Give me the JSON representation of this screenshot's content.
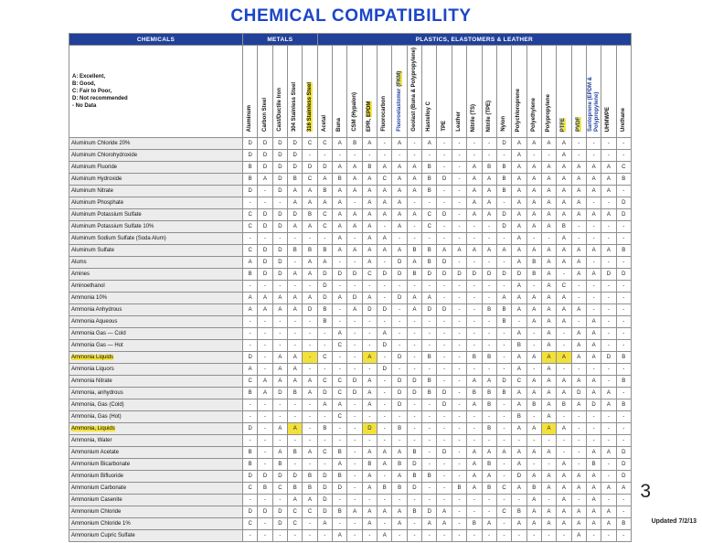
{
  "page": {
    "title": "CHEMICAL COMPATIBILITY",
    "page_number": "3",
    "updated": "Updated 7/2/13"
  },
  "colors": {
    "title_blue": "#1b46c8",
    "header_blue": "#21409a",
    "highlight_yellow": "#f2e13a",
    "label_gray": "#ececec"
  },
  "legend": {
    "lines": [
      "A: Excellent,",
      "B: Good,",
      "C: Fair to Poor,",
      "D: Not recommended",
      "-  No Data"
    ]
  },
  "table": {
    "group_headers": [
      {
        "label": "CHEMICALS",
        "span": 1
      },
      {
        "label": "METALS",
        "span": 5
      },
      {
        "label": "PLASTICS, ELASTOMERS & LEATHER",
        "span": 21
      }
    ],
    "columns": [
      {
        "pre": "Aluminum",
        "hl": ""
      },
      {
        "pre": "Carbon Steel",
        "hl": ""
      },
      {
        "pre": "Cast/Ductile Iron",
        "hl": ""
      },
      {
        "pre": "304 Stainless Steel",
        "hl": ""
      },
      {
        "pre": "",
        "hl": "316 Stainless Steel"
      },
      {
        "pre": "Acetal",
        "hl": ""
      },
      {
        "pre": "Buna",
        "hl": ""
      },
      {
        "pre": "CSM (Hypalon)",
        "hl": ""
      },
      {
        "pre": "EPR, ",
        "hl": "EPDM"
      },
      {
        "pre": "Fluorocarbon",
        "hl": ""
      },
      {
        "pre": "Fluoroelastomer ",
        "hl": "(FKM)",
        "blue": true
      },
      {
        "pre": "Geolast (Buna & Polypropylene)",
        "hl": ""
      },
      {
        "pre": "Hastelloy C",
        "hl": ""
      },
      {
        "pre": "TPE",
        "hl": ""
      },
      {
        "pre": "Leather",
        "hl": ""
      },
      {
        "pre": "Nitrile (TS)",
        "hl": ""
      },
      {
        "pre": "Nitrile (TPE)",
        "hl": ""
      },
      {
        "pre": "Nylon",
        "hl": ""
      },
      {
        "pre": "Polychloroprene",
        "hl": ""
      },
      {
        "pre": "Polyethylene",
        "hl": ""
      },
      {
        "pre": "Polypropylene",
        "hl": ""
      },
      {
        "pre": "",
        "hl": "PTFE",
        "blue": true
      },
      {
        "pre": "",
        "hl": "PVDF",
        "blue": true
      },
      {
        "pre": "Santoprene (EPDM & Polypropylene)",
        "hl": "",
        "blue": true
      },
      {
        "pre": "UHMWPE",
        "hl": ""
      },
      {
        "pre": "Urethane",
        "hl": ""
      }
    ],
    "rows": [
      {
        "name": "Aluminum Chloride 20%",
        "name_hl": false,
        "values": "D D D D C C A B A - A - A - - - - D A A A A - - - -",
        "hl_cells": []
      },
      {
        "name": "Aluminum Chlorohydroxide",
        "name_hl": false,
        "values": "D D D D - - - - - - - - - - - - - - A - - A - - - -",
        "hl_cells": []
      },
      {
        "name": "Aluminum Fluoride",
        "name_hl": false,
        "values": "B D D D D D A A B A A A B - - A B B A A A A A A A C",
        "hl_cells": []
      },
      {
        "name": "Aluminum Hydroxide",
        "name_hl": false,
        "values": "B A D B C A B A A C A A B D - A A B A A A A A A A B",
        "hl_cells": []
      },
      {
        "name": "Aluminum Nitrate",
        "name_hl": false,
        "values": "D - D A A B A A A A A A B - - A A B A A A A A A A -",
        "hl_cells": []
      },
      {
        "name": "Aluminum Phosphate",
        "name_hl": false,
        "values": "- - - A A A A - A A A - - - - A A - A A A A A - - D",
        "hl_cells": []
      },
      {
        "name": "Aluminum Potassium Sulfate",
        "name_hl": false,
        "values": "C D D D B C A A A A A A C D - A A D A A A A A A A D",
        "hl_cells": []
      },
      {
        "name": "Aluminum Potassium Sulfate 10%",
        "name_hl": false,
        "values": "C D D A A C A A A - A - C - - - - D A A A B - - - -",
        "hl_cells": []
      },
      {
        "name": "Aluminum Sodium Sulfate (Soda Alum)",
        "name_hl": false,
        "values": "- - - - - - A - A A - - - - - - - - A - - A - - - -",
        "hl_cells": []
      },
      {
        "name": "Aluminum Sulfate",
        "name_hl": false,
        "values": "C D D B B B A A A A A B B A A A A A A A A A A A A B",
        "hl_cells": []
      },
      {
        "name": "Alums",
        "name_hl": false,
        "values": "A D D - A A - - A - D A B D - - - - A B A A A - - -",
        "hl_cells": []
      },
      {
        "name": "Amines",
        "name_hl": false,
        "values": "B D D A A D D D C D D B D D D D D D D B A - A A D D",
        "hl_cells": []
      },
      {
        "name": "Aminoethanol",
        "name_hl": false,
        "values": "- - - - - D - - - - - - - - - - - - A - A C - - - -",
        "hl_cells": []
      },
      {
        "name": "Ammonia 10%",
        "name_hl": false,
        "values": "A A A A A D A D A - D A A - - - - A A A A A - - - -",
        "hl_cells": []
      },
      {
        "name": "Ammonia Anhydrous",
        "name_hl": false,
        "values": "A A A A D B - A D D - A D D - - B B A A A A A - - -",
        "hl_cells": []
      },
      {
        "name": "Ammonia Aqueous",
        "name_hl": false,
        "values": "- - - - - B - - - - - - - - - - - B - A A A - A - -",
        "hl_cells": []
      },
      {
        "name": "Ammonia Gas — Cold",
        "name_hl": false,
        "values": "- - - - - - A - - A - - - - - - - - A - A - A A - -",
        "hl_cells": []
      },
      {
        "name": "Ammonia Gas — Hot",
        "name_hl": false,
        "values": "- - - - - - C - - D - - - - - - - - B - A - A A - -",
        "hl_cells": []
      },
      {
        "name": "Ammonia Liquids",
        "name_hl": true,
        "values": "D - A A - C - - A - D - B - - B B - A A A A A A D B",
        "hl_cells": [
          4,
          8,
          20,
          21
        ]
      },
      {
        "name": "Ammonia Liquors",
        "name_hl": false,
        "values": "A - A A - - - - - D - - - - - - - - A - A - - - - -",
        "hl_cells": []
      },
      {
        "name": "Ammonia Nitrate",
        "name_hl": false,
        "values": "C A A A A C C D A - D D B - - A A D C A A A A A - B",
        "hl_cells": []
      },
      {
        "name": "Ammonia, anhydrous",
        "name_hl": false,
        "values": "B A D B A D C D A - D D B D - B B B A A A A D A A -",
        "hl_cells": []
      },
      {
        "name": "Ammonia, Gas (Cold)",
        "name_hl": false,
        "values": "- - - - - A A - A - D - - D - A B - A B A B A D A B",
        "hl_cells": []
      },
      {
        "name": "Ammonia, Gas (Hot)",
        "name_hl": false,
        "values": "- - - - - - C - - - - - - - - - - - B - A - - - - -",
        "hl_cells": []
      },
      {
        "name": "Ammonia, Liquids",
        "name_hl": true,
        "values": "D - A A - B - - D - B - - - - - B - A A A A - - - -",
        "hl_cells": [
          3,
          8,
          20
        ]
      },
      {
        "name": "Ammonia, Water",
        "name_hl": false,
        "values": "- - - - - - - - - - - - - - - - - - - - - - - - - -",
        "hl_cells": []
      },
      {
        "name": "Ammonium Acetate",
        "name_hl": false,
        "values": "B - A B A C B - A A A B - D - A A A A A A - - A A D",
        "hl_cells": []
      },
      {
        "name": "Ammonium Bicarbonate",
        "name_hl": false,
        "values": "B - B - - - A - B A B D - - - A B - A - - A - B - D",
        "hl_cells": []
      },
      {
        "name": "Ammonium Bifluoride",
        "name_hl": false,
        "values": "D D D D B D B - A - A B B - - A A - D A A A A A - D",
        "hl_cells": []
      },
      {
        "name": "Ammonium Carbonate",
        "name_hl": false,
        "values": "C B C B B D D - A B B D - - B A B C A B A A A A A A",
        "hl_cells": []
      },
      {
        "name": "Ammonium Casenite",
        "name_hl": false,
        "values": "- - - A A D - - - - - - - - - - - - - A - A - A - -",
        "hl_cells": []
      },
      {
        "name": "Ammonium Chloride",
        "name_hl": false,
        "values": "D D D C C D B A A A A B D A - - - C B A A A A A A -",
        "hl_cells": []
      },
      {
        "name": "Ammonium Chloride 1%",
        "name_hl": false,
        "values": "C - D C - A - - A - A - A A - B A - A A A A A A A B",
        "hl_cells": []
      },
      {
        "name": "Ammonium Cupric Sulfate",
        "name_hl": false,
        "values": "- - - - - - A - - A - - - - - - - - - - - - A - - -",
        "hl_cells": []
      }
    ]
  }
}
